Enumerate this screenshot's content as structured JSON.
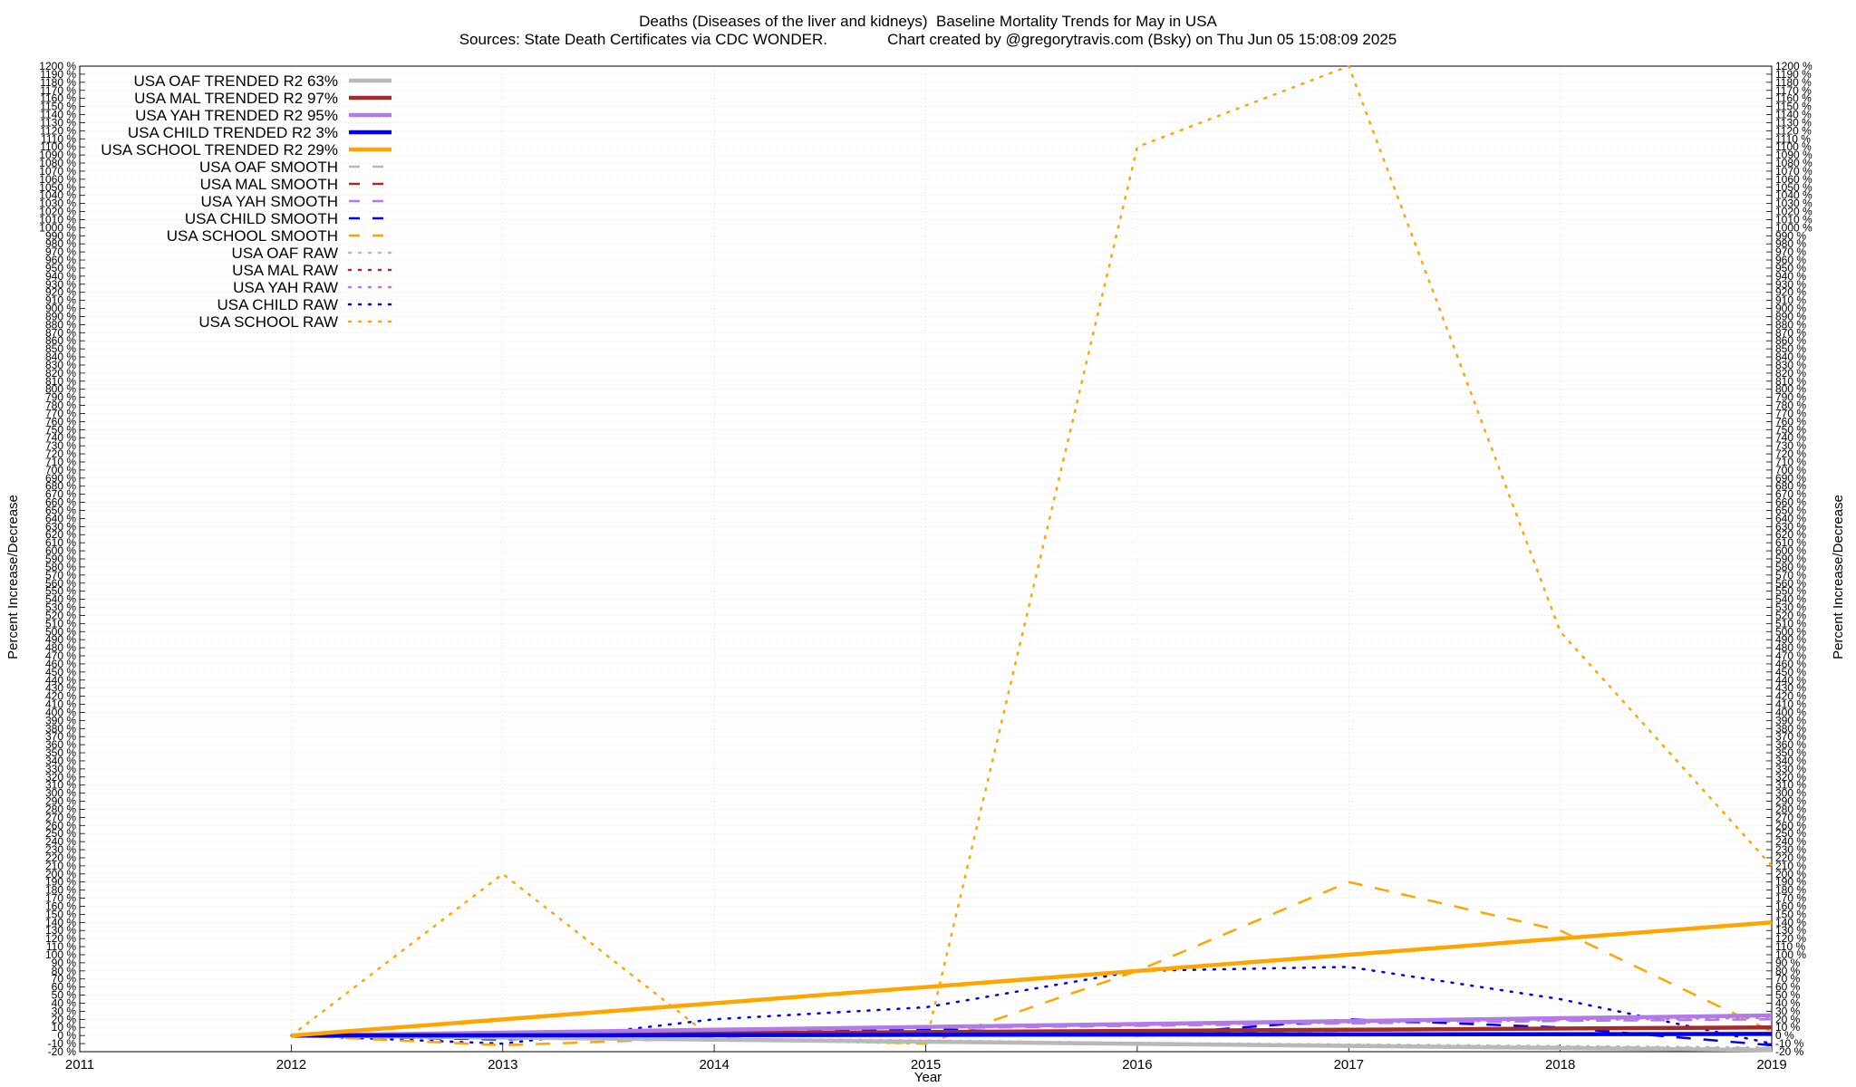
{
  "title_line1": "Deaths (Diseases of the liver and kidneys)  Baseline Mortality Trends for May in USA",
  "title_line2": "Sources: State Death Certificates via CDC WONDER.              Chart created by @gregorytravis.com (Bsky) on Thu Jun 05 15:08:09 2025",
  "colors": {
    "oaf": "#b8b8b8",
    "mal": "#a52a2a",
    "yah": "#b27ae8",
    "child": "#0000ee",
    "school": "#ffa500",
    "grid": "#d4d4d4"
  },
  "chart_data": {
    "type": "line",
    "xlabel": "Year",
    "ylabel": "Percent Increase/Decrease",
    "y2label": "Percent Increase/Decrease",
    "xlim": [
      2011,
      2019
    ],
    "ylim": [
      -20,
      1200
    ],
    "x_ticks": [
      2011,
      2012,
      2013,
      2014,
      2015,
      2016,
      2017,
      2018,
      2019
    ],
    "y_tick_step": 10,
    "y_tick_suffix": " %",
    "grid": true,
    "legend_position": "top-left",
    "series": [
      {
        "name": "USA OAF TRENDED R2  63%",
        "style": "trend",
        "color_key": "oaf",
        "x": [
          2012,
          2019
        ],
        "y": [
          0,
          -18
        ]
      },
      {
        "name": "USA MAL TRENDED R2  97%",
        "style": "trend",
        "color_key": "mal",
        "x": [
          2012,
          2019
        ],
        "y": [
          0,
          10
        ]
      },
      {
        "name": "USA YAH TRENDED R2  95%",
        "style": "trend",
        "color_key": "yah",
        "x": [
          2012,
          2019
        ],
        "y": [
          0,
          25
        ]
      },
      {
        "name": "USA CHILD TRENDED R2   3%",
        "style": "trend",
        "color_key": "child",
        "x": [
          2012,
          2019
        ],
        "y": [
          0,
          2
        ]
      },
      {
        "name": "USA SCHOOL TRENDED R2  29%",
        "style": "trend",
        "color_key": "school",
        "x": [
          2012,
          2019
        ],
        "y": [
          0,
          140
        ]
      },
      {
        "name": "USA OAF SMOOTH",
        "style": "smooth",
        "color_key": "oaf",
        "x": [
          2012,
          2013,
          2014,
          2015,
          2016,
          2017,
          2018,
          2019
        ],
        "y": [
          0,
          -3,
          -5,
          -8,
          -10,
          -12,
          -14,
          -16
        ]
      },
      {
        "name": "USA MAL SMOOTH",
        "style": "smooth",
        "color_key": "mal",
        "x": [
          2012,
          2013,
          2014,
          2015,
          2016,
          2017,
          2018,
          2019
        ],
        "y": [
          0,
          1,
          2,
          3,
          4,
          6,
          8,
          9
        ]
      },
      {
        "name": "USA YAH SMOOTH",
        "style": "smooth",
        "color_key": "yah",
        "x": [
          2012,
          2013,
          2014,
          2015,
          2016,
          2017,
          2018,
          2019
        ],
        "y": [
          0,
          3,
          6,
          9,
          12,
          15,
          18,
          20
        ]
      },
      {
        "name": "USA CHILD SMOOTH",
        "style": "smooth",
        "color_key": "child",
        "x": [
          2012,
          2013,
          2014,
          2015,
          2016,
          2017,
          2018,
          2019
        ],
        "y": [
          0,
          -5,
          5,
          8,
          0,
          20,
          10,
          -12
        ]
      },
      {
        "name": "USA SCHOOL SMOOTH",
        "style": "smooth",
        "color_key": "school",
        "x": [
          2012,
          2013,
          2014,
          2015,
          2016,
          2017,
          2018,
          2019
        ],
        "y": [
          0,
          -12,
          -3,
          -10,
          80,
          190,
          130,
          5
        ]
      },
      {
        "name": "USA OAF RAW",
        "style": "raw",
        "color_key": "oaf",
        "x": [
          2012,
          2013,
          2014,
          2015,
          2016,
          2017,
          2018,
          2019
        ],
        "y": [
          0,
          -2,
          -4,
          -6,
          -9,
          -11,
          -13,
          -15
        ]
      },
      {
        "name": "USA MAL RAW",
        "style": "raw",
        "color_key": "mal",
        "x": [
          2012,
          2013,
          2014,
          2015,
          2016,
          2017,
          2018,
          2019
        ],
        "y": [
          0,
          2,
          3,
          4,
          5,
          7,
          9,
          10
        ]
      },
      {
        "name": "USA YAH RAW",
        "style": "raw",
        "color_key": "yah",
        "x": [
          2012,
          2013,
          2014,
          2015,
          2016,
          2017,
          2018,
          2019
        ],
        "y": [
          0,
          4,
          7,
          10,
          13,
          16,
          19,
          22
        ]
      },
      {
        "name": "USA CHILD RAW",
        "style": "raw",
        "color_key": "child",
        "x": [
          2012,
          2013,
          2014,
          2015,
          2016,
          2017,
          2018,
          2019
        ],
        "y": [
          0,
          -10,
          20,
          35,
          80,
          85,
          45,
          -10
        ]
      },
      {
        "name": "USA SCHOOL RAW",
        "style": "raw",
        "color_key": "school",
        "x": [
          2012,
          2013,
          2014,
          2015,
          2016,
          2017,
          2018,
          2019
        ],
        "y": [
          0,
          200,
          -5,
          -10,
          1100,
          1200,
          500,
          210
        ]
      }
    ]
  }
}
